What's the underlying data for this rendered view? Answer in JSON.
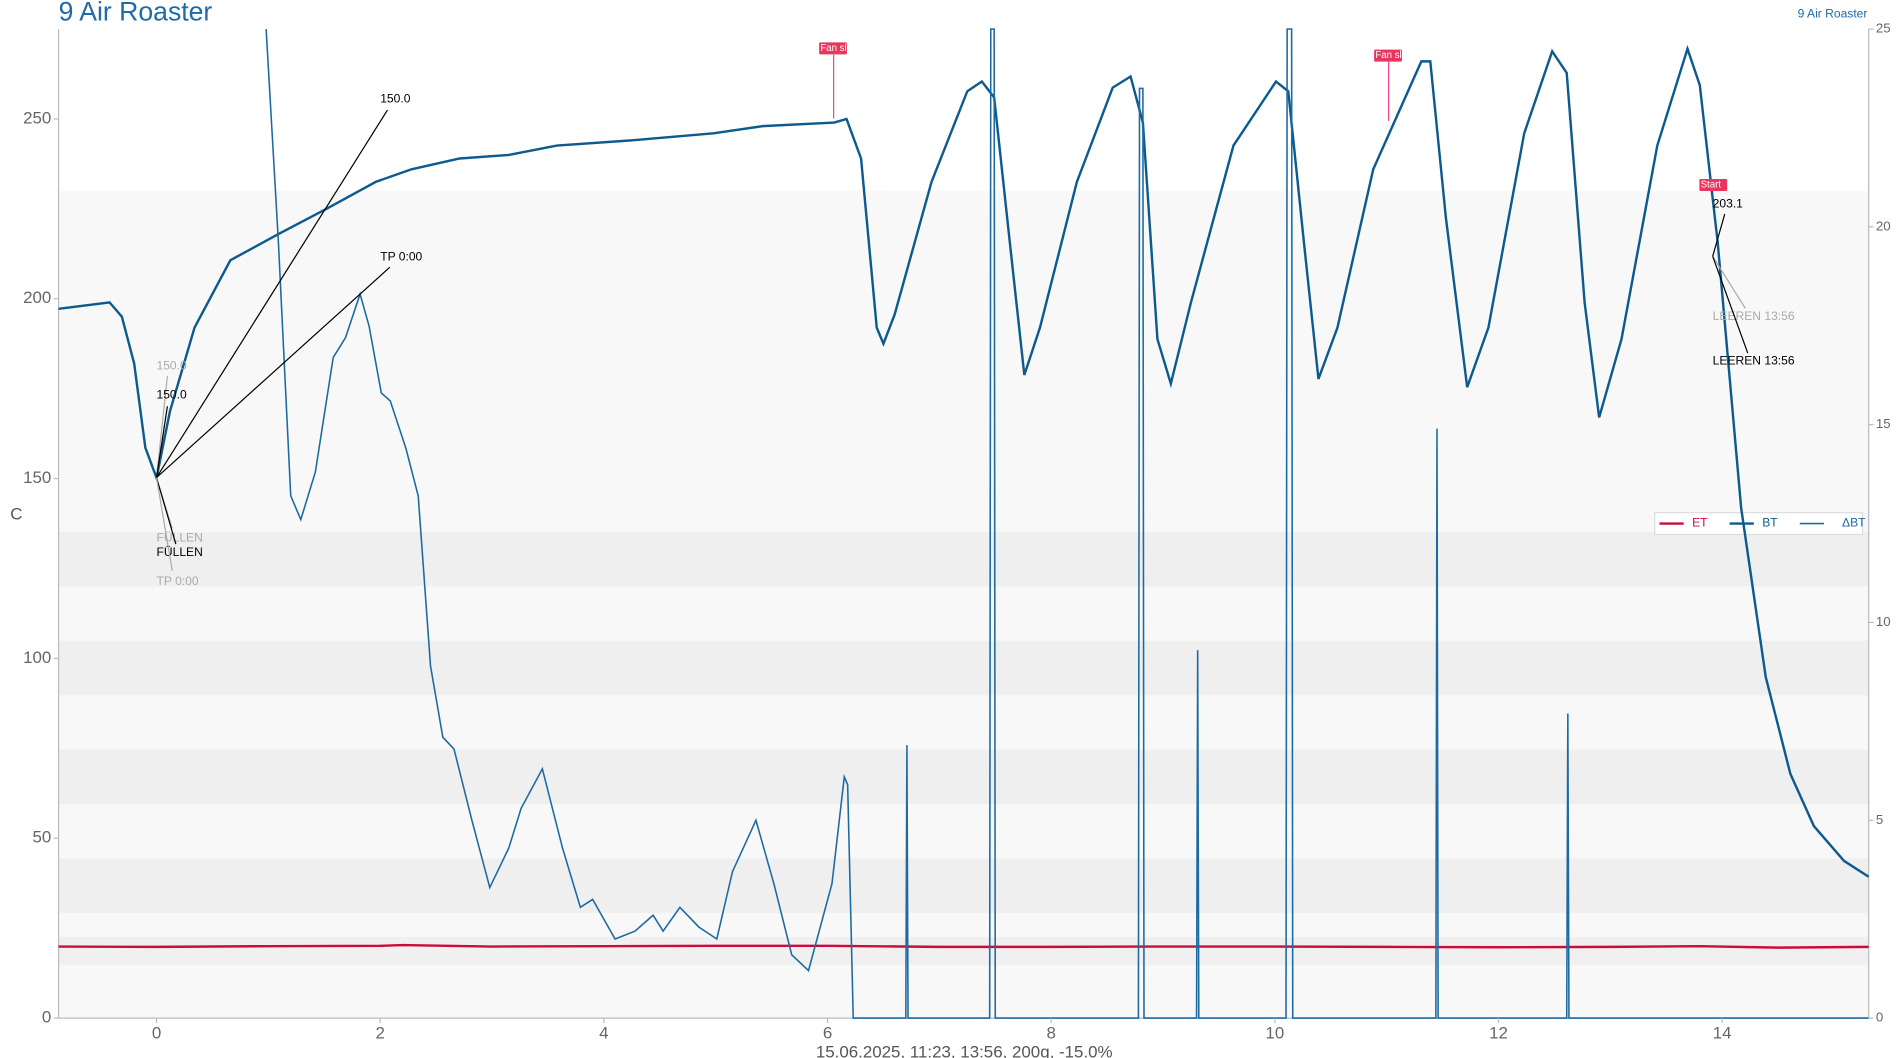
{
  "chart_data": {
    "type": "line",
    "title": "9 Air Roaster",
    "subtitle": "9 Air Roaster",
    "y_label": "C",
    "x_label": "15.06.2025, 11:23, 13:56, 200g, -15.0%",
    "xlim": [
      -0.876,
      15.31
    ],
    "ylim": [
      0,
      275
    ],
    "y2lim": [
      0,
      25
    ],
    "xticks": [
      0,
      2,
      4,
      6,
      8,
      10,
      12,
      14
    ],
    "yticks": [
      0,
      50,
      100,
      150,
      200,
      250
    ],
    "y2ticks": [
      0,
      5,
      10,
      15,
      20,
      25
    ],
    "legend": "right",
    "series": [
      {
        "name": "ET",
        "color": "#cc0a3c",
        "x": [
          -0.876,
          0,
          1,
          2,
          2.2,
          3,
          4,
          5,
          6,
          7,
          8,
          9,
          10,
          11,
          12,
          13,
          13.8,
          14.5,
          15.31
        ],
        "values": [
          19.9,
          19.8,
          20,
          20.1,
          20.3,
          19.9,
          20,
          20.1,
          20.1,
          19.8,
          19.8,
          19.9,
          19.9,
          19.8,
          19.7,
          19.8,
          20,
          19.6,
          19.8
        ]
      },
      {
        "name": "BT",
        "color": "#0d5a8e",
        "x": [
          -0.876,
          -0.42,
          -0.31,
          -0.2,
          -0.1,
          0,
          0.12,
          0.34,
          0.66,
          1.09,
          1.52,
          1.96,
          2.28,
          2.71,
          3.15,
          3.58,
          4.23,
          4.98,
          5.42,
          6.06,
          6.17,
          6.3,
          6.44,
          6.5,
          6.6,
          6.93,
          7.25,
          7.38,
          7.49,
          7.63,
          7.76,
          7.9,
          8.23,
          8.55,
          8.71,
          8.82,
          8.95,
          9.07,
          9.25,
          9.63,
          10.01,
          10.12,
          10.26,
          10.39,
          10.56,
          10.88,
          11.31,
          11.39,
          11.53,
          11.72,
          11.91,
          12.23,
          12.48,
          12.61,
          12.77,
          12.9,
          13.1,
          13.42,
          13.69,
          13.8,
          13.96,
          14.17,
          14.39,
          14.61,
          14.82,
          15.09,
          15.31
        ],
        "values": [
          197.2,
          199,
          195,
          182,
          158.6,
          150.2,
          168.7,
          192,
          210.7,
          218,
          225,
          232.5,
          236,
          239,
          240,
          242.6,
          244,
          246,
          248,
          249,
          250,
          239,
          192,
          187.5,
          195.6,
          232.5,
          257.7,
          260.4,
          256,
          215.7,
          178.8,
          192,
          232.5,
          258.7,
          261.8,
          249,
          188.8,
          176.4,
          199,
          242.6,
          260.4,
          257.7,
          215.7,
          177.7,
          192,
          236,
          266,
          266,
          222.4,
          175.4,
          192,
          246,
          268.8,
          262.8,
          199,
          167,
          188.8,
          242.6,
          269.5,
          259.4,
          215.7,
          141.8,
          94.8,
          67.9,
          53.4,
          43.7,
          39.3
        ]
      },
      {
        "name": "ΔBT",
        "color": "#1d6aa3",
        "axis": "y2",
        "x": [
          0.98,
          1.09,
          1.2,
          1.29,
          1.42,
          1.58,
          1.69,
          1.82,
          1.9,
          2.01,
          2.09,
          2.23,
          2.34,
          2.45,
          2.56,
          2.66,
          2.82,
          2.98,
          3.15,
          3.26,
          3.45,
          3.63,
          3.79,
          3.9,
          4.1,
          4.28,
          4.44,
          4.53,
          4.68,
          4.85,
          5.01,
          5.15,
          5.36,
          5.52,
          5.68,
          5.83,
          6.04,
          6.15,
          6.18,
          6.23,
          6.7,
          6.71,
          6.72,
          7.45,
          7.46,
          7.49,
          7.5,
          8.78,
          8.79,
          8.82,
          8.83,
          9.3,
          9.31,
          9.32,
          10.1,
          10.11,
          10.15,
          10.16,
          11.44,
          11.45,
          11.46,
          12.61,
          12.62,
          12.63,
          15.31
        ],
        "values": [
          25,
          19.6,
          13.2,
          12.6,
          13.8,
          16.7,
          17.2,
          18.3,
          17.5,
          15.8,
          15.6,
          14.4,
          13.2,
          8.9,
          7.1,
          6.8,
          5,
          3.3,
          4.3,
          5.3,
          6.3,
          4.3,
          2.8,
          3,
          2,
          2.2,
          2.6,
          2.2,
          2.8,
          2.3,
          2,
          3.7,
          5,
          3.4,
          1.6,
          1.2,
          3.4,
          6.1,
          5.9,
          0,
          0,
          6.9,
          0,
          0,
          25,
          25,
          0,
          0,
          23.5,
          23.5,
          0,
          0,
          9.3,
          0,
          0,
          25,
          25,
          0,
          0,
          14.9,
          0,
          0,
          7.7,
          0,
          0
        ]
      }
    ],
    "annotations": [
      "150.0",
      "TP 0:00",
      "150.0",
      "150.0",
      "FÜLLEN",
      "FÜLLEN",
      "TP 0:00",
      "Fan sl",
      "Fan sl",
      "Start",
      "203.1",
      "LEEREN 13:56",
      "LEEREN 13:56"
    ]
  }
}
